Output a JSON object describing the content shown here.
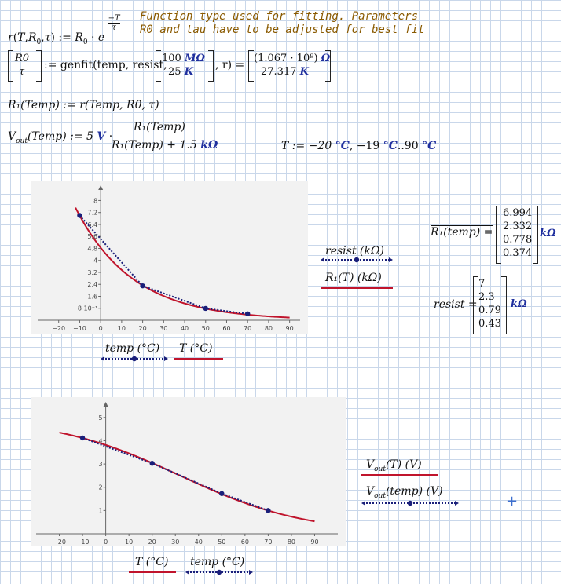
{
  "comment": {
    "line1": "Function type used for fitting. Parameters",
    "line2": "R0 and tau have to be adjusted for best fit"
  },
  "defs": {
    "r_def_lhs": "r(T,R",
    "r_def_mid": ",τ) := R",
    "r_def_rhs": "· e",
    "exp_num": "T",
    "exp_den": "τ",
    "genfit_call": ":= genfit(temp, resist,",
    "guess_top": "100",
    "guess_top_unit": "MΩ",
    "guess_bot": "25",
    "guess_bot_unit": "K",
    "genfit_tail": ", r) =",
    "result_top": "(1.067 · 10⁸)",
    "result_top_unit": "Ω",
    "result_bot": "27.317",
    "result_bot_unit": "K",
    "vec_top": "R0",
    "vec_bot": "τ",
    "r1_def": "R₁(Temp) := r(Temp, R0, τ)",
    "vout_lhs": "V",
    "vout_sub": "out",
    "vout_arg": "(Temp) := 5",
    "vout_unit": "V",
    "vout_num": "R₁(Temp)",
    "vout_den_a": "R₁(Temp) + 1.5",
    "vout_den_unit": "kΩ",
    "trange": "T := −20",
    "trange_u1": "°C",
    "trange_mid": ", −19",
    "trange_u2": "°C",
    "trange_end": "..90",
    "trange_u3": "°C"
  },
  "results": {
    "r1_label": "R₁(temp) =",
    "r1_values": [
      "6.994",
      "2.332",
      "0.778",
      "0.374"
    ],
    "r1_unit": "kΩ",
    "resist_label": "resist =",
    "resist_values": [
      "7",
      "2.3",
      "0.79",
      "0.43"
    ],
    "resist_unit": "kΩ"
  },
  "plot1_legend": {
    "series_a": "resist  (kΩ)",
    "series_b": "R₁(T)  (kΩ)",
    "xa": "temp  (°C)",
    "xb": "T  (°C)"
  },
  "plot2_legend": {
    "series_a": "Vout(T)  (V)",
    "series_a_main": "V",
    "series_a_sub": "out",
    "series_a_rest": "(T)  (V)",
    "series_b_main": "V",
    "series_b_sub": "out",
    "series_b_rest": "(temp)  (V)",
    "xa": "T  (°C)",
    "xb": "temp  (°C)"
  },
  "colors": {
    "fit": "#c0142c",
    "data": "#1a1f7a",
    "grid": "#c9d7ea"
  },
  "chart_data": [
    {
      "type": "line",
      "title": "",
      "xlabel": "",
      "ylabel": "",
      "xlim": [
        -30,
        95
      ],
      "ylim": [
        0,
        8.6
      ],
      "x_ticks": [
        -20,
        -10,
        0,
        10,
        20,
        30,
        40,
        50,
        60,
        70,
        80,
        90
      ],
      "y_ticks": [
        0.8,
        1.6,
        2.4,
        3.2,
        4,
        4.8,
        5.6,
        6.4,
        7.2,
        8
      ],
      "y_tick_labels": [
        "8·10⁻¹",
        "1.6",
        "2.4",
        "3.2",
        "4",
        "4.8",
        "5.6",
        "6.4",
        "7.2",
        "8"
      ],
      "series": [
        {
          "name": "resist (kΩ)",
          "style": "dotted-markers",
          "x": [
            -10,
            20,
            50,
            70
          ],
          "y": [
            7,
            2.3,
            0.79,
            0.43
          ]
        },
        {
          "name": "R1(T) (kΩ)",
          "style": "solid",
          "R0_ohm": 106700000,
          "tau_K": 27.317,
          "x_range": [
            -12,
            90
          ]
        }
      ]
    },
    {
      "type": "line",
      "title": "",
      "xlabel": "",
      "ylabel": "",
      "xlim": [
        -30,
        100
      ],
      "ylim": [
        0,
        5.4
      ],
      "x_ticks": [
        -20,
        -10,
        0,
        10,
        20,
        30,
        40,
        50,
        60,
        70,
        80,
        90
      ],
      "y_ticks": [
        1,
        2,
        3,
        4,
        5
      ],
      "series": [
        {
          "name": "Vout(T) (V)",
          "style": "solid",
          "x_range": [
            -20,
            90
          ]
        },
        {
          "name": "Vout(temp) (V)",
          "style": "dotted-markers",
          "x": [
            -10,
            20,
            50,
            70
          ],
          "y": [
            4.12,
            3.03,
            1.73,
            1.0
          ]
        }
      ]
    }
  ]
}
